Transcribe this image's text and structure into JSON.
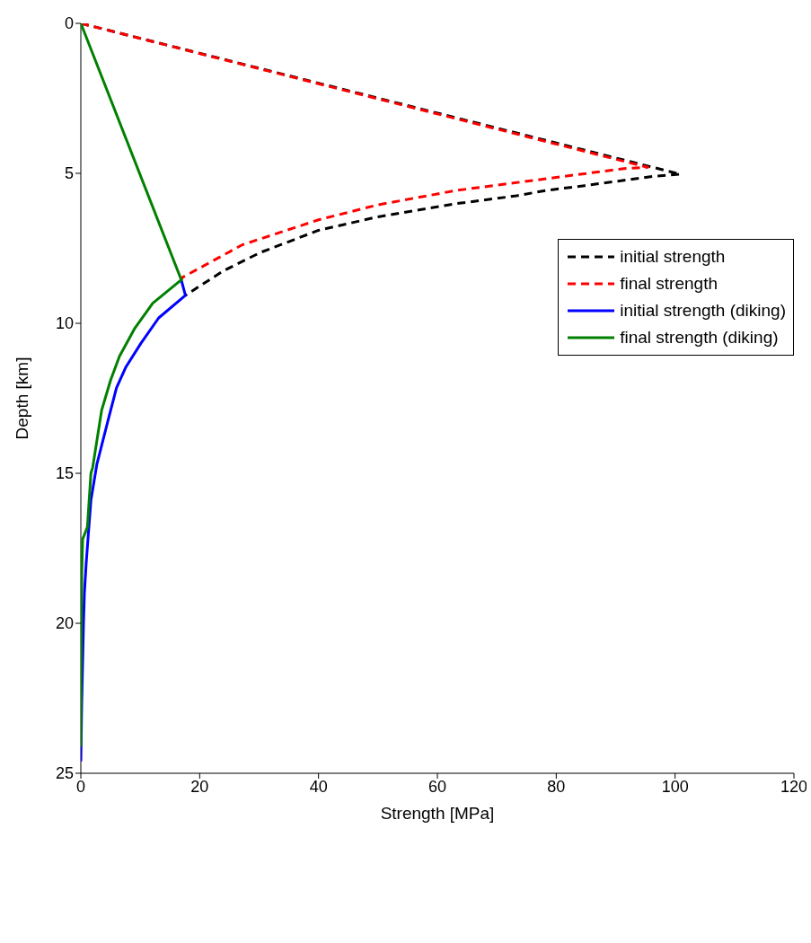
{
  "chart_data": {
    "type": "line",
    "xlabel": "Strength [MPa]",
    "ylabel": "Depth [km]",
    "xlim": [
      0,
      120
    ],
    "xticks": [
      0,
      20,
      40,
      60,
      80,
      100,
      120
    ],
    "ylim": [
      25,
      0
    ],
    "yticks": [
      0,
      5,
      10,
      15,
      20,
      25
    ],
    "grid": false,
    "legend": "top right",
    "marker": "none",
    "series": [
      {
        "name": "initial strength",
        "color": "#000000",
        "line_style": "dashed",
        "x": [
          0,
          100.9,
          96.4,
          90.4,
          84.8,
          78.3,
          73.3,
          63.2,
          50,
          40,
          30.2,
          24,
          19.2,
          17.6
        ],
        "values": [
          0,
          5.03,
          5.1,
          5.26,
          5.41,
          5.57,
          5.75,
          6.01,
          6.45,
          6.9,
          7.64,
          8.25,
          8.86,
          9.07
        ]
      },
      {
        "name": "final strength",
        "color": "#ff0000",
        "line_style": "dashed",
        "x": [
          0,
          95.4,
          91.4,
          78.3,
          63.2,
          50,
          40,
          27.2,
          17.1,
          16.9
        ],
        "values": [
          0,
          4.8,
          4.84,
          5.18,
          5.57,
          6.05,
          6.55,
          7.38,
          8.47,
          8.55
        ]
      },
      {
        "name": "initial strength (diking)",
        "color": "#0000ff",
        "line_style": "solid",
        "x": [
          16.9,
          17.6,
          13.1,
          10.1,
          7.6,
          6.0,
          4.5,
          2.7,
          1.7,
          1.2,
          0.9,
          0.6,
          0.45,
          0.15,
          0
        ],
        "values": [
          8.55,
          9.07,
          9.82,
          10.67,
          11.45,
          12.15,
          13.3,
          14.7,
          15.9,
          17.2,
          18.0,
          19.0,
          20.0,
          22.7,
          24.6
        ]
      },
      {
        "name": "final strength (diking)",
        "color": "#008000",
        "line_style": "solid",
        "x": [
          0,
          16.9,
          12.1,
          9.1,
          6.5,
          5.0,
          3.5,
          2.0,
          1.7,
          1.1,
          0.3,
          0.15,
          0.05,
          0
        ],
        "values": [
          0,
          8.55,
          9.33,
          10.16,
          11.1,
          11.9,
          12.9,
          14.8,
          15.0,
          16.8,
          17.2,
          18.4,
          22.4,
          24.1
        ]
      }
    ]
  }
}
